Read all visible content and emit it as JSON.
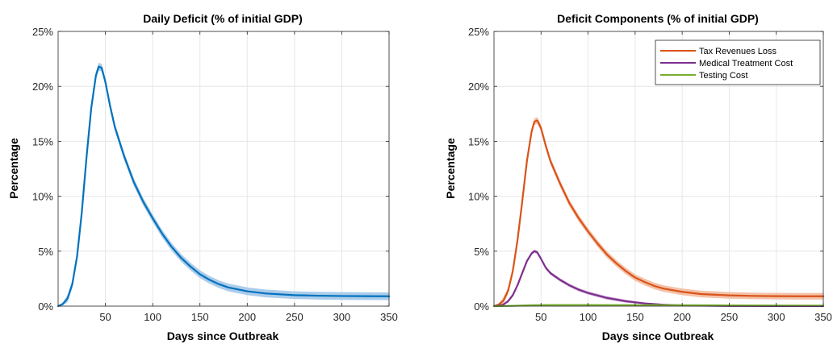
{
  "colors": {
    "blue": "#0072BD",
    "blue_band": "#9DC3E6",
    "orange": "#D95319",
    "orange_band": "#F2B79A",
    "purple": "#7E2F8E",
    "purple_band": "#C9A6D1",
    "green": "#77AC30",
    "grid": "#E6E6E6",
    "axis": "#262626"
  },
  "chart_data": [
    {
      "type": "line",
      "title": "Daily Deficit (% of initial GDP)",
      "xlabel": "Days since Outbreak",
      "ylabel": "Percentage",
      "xlim": [
        0,
        350
      ],
      "ylim": [
        0,
        25
      ],
      "xticks": [
        50,
        100,
        150,
        200,
        250,
        300,
        350
      ],
      "xtick_labels": [
        "50",
        "100",
        "150",
        "200",
        "250",
        "300",
        "350"
      ],
      "yticks": [
        0,
        5,
        10,
        15,
        20,
        25
      ],
      "ytick_labels": [
        "0%",
        "5%",
        "10%",
        "15%",
        "20%",
        "25%"
      ],
      "grid": true,
      "legend": null,
      "series": [
        {
          "name": "",
          "color_key": "blue",
          "band_key": "blue_band",
          "band_width": 0.35,
          "x": [
            0,
            5,
            10,
            15,
            20,
            25,
            30,
            35,
            40,
            43,
            46,
            50,
            55,
            60,
            70,
            80,
            90,
            100,
            110,
            120,
            130,
            140,
            150,
            160,
            170,
            180,
            200,
            220,
            250,
            275,
            300,
            325,
            350
          ],
          "y": [
            0,
            0.2,
            0.7,
            2.0,
            4.5,
            8.5,
            13.5,
            18.0,
            21.0,
            21.8,
            21.7,
            20.4,
            18.2,
            16.3,
            13.6,
            11.3,
            9.5,
            8.0,
            6.6,
            5.4,
            4.4,
            3.6,
            2.9,
            2.4,
            2.0,
            1.7,
            1.35,
            1.15,
            1.0,
            0.95,
            0.92,
            0.91,
            0.9
          ]
        }
      ]
    },
    {
      "type": "line",
      "title": "Deficit Components (% of initial GDP)",
      "xlabel": "Days since Outbreak",
      "ylabel": "Percentage",
      "xlim": [
        0,
        350
      ],
      "ylim": [
        0,
        25
      ],
      "xticks": [
        50,
        100,
        150,
        200,
        250,
        300,
        350
      ],
      "xtick_labels": [
        "50",
        "100",
        "150",
        "200",
        "250",
        "300",
        "350"
      ],
      "yticks": [
        0,
        5,
        10,
        15,
        20,
        25
      ],
      "ytick_labels": [
        "0%",
        "5%",
        "10%",
        "15%",
        "20%",
        "25%"
      ],
      "grid": true,
      "legend": "top-right",
      "series": [
        {
          "name": "Tax Revenues Loss",
          "color_key": "orange",
          "band_key": "orange_band",
          "band_width": 0.3,
          "x": [
            0,
            5,
            10,
            15,
            20,
            25,
            30,
            35,
            40,
            43,
            46,
            50,
            55,
            60,
            70,
            80,
            90,
            100,
            110,
            120,
            130,
            140,
            150,
            160,
            170,
            180,
            200,
            220,
            250,
            275,
            300,
            325,
            350
          ],
          "y": [
            0,
            0.15,
            0.5,
            1.4,
            3.2,
            6.0,
            9.5,
            13.2,
            15.9,
            16.8,
            16.9,
            16.2,
            14.6,
            13.2,
            11.2,
            9.4,
            8.0,
            6.8,
            5.7,
            4.7,
            3.9,
            3.2,
            2.6,
            2.2,
            1.85,
            1.6,
            1.3,
            1.1,
            0.98,
            0.93,
            0.91,
            0.9,
            0.9
          ]
        },
        {
          "name": "Medical Treatment Cost",
          "color_key": "purple",
          "band_key": "purple_band",
          "band_width": 0.15,
          "x": [
            0,
            5,
            10,
            15,
            20,
            25,
            30,
            35,
            40,
            43,
            46,
            50,
            55,
            60,
            70,
            80,
            90,
            100,
            120,
            140,
            160,
            180,
            200,
            220,
            250,
            300,
            350
          ],
          "y": [
            0,
            0.04,
            0.15,
            0.45,
            1.0,
            1.9,
            3.0,
            4.1,
            4.8,
            5.0,
            4.9,
            4.3,
            3.5,
            3.0,
            2.4,
            1.9,
            1.5,
            1.2,
            0.75,
            0.45,
            0.25,
            0.13,
            0.07,
            0.04,
            0.02,
            0.01,
            0.0
          ]
        },
        {
          "name": "Testing Cost",
          "color_key": "green",
          "band_key": null,
          "band_width": 0,
          "x": [
            0,
            20,
            40,
            60,
            100,
            150,
            200,
            250,
            300,
            350
          ],
          "y": [
            0,
            0.03,
            0.08,
            0.1,
            0.1,
            0.09,
            0.08,
            0.07,
            0.06,
            0.05
          ]
        }
      ]
    }
  ]
}
